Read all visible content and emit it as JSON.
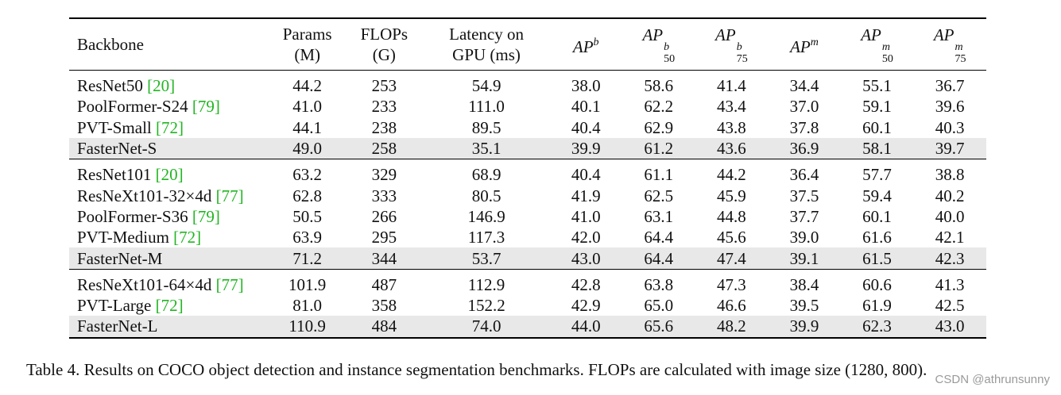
{
  "header": {
    "backbone": "Backbone",
    "params": [
      "Params",
      "(M)"
    ],
    "flops": [
      "FLOPs",
      "(G)"
    ],
    "latency": [
      "Latency on",
      "GPU (ms)"
    ],
    "metrics": [
      {
        "base": "AP",
        "sup": "b",
        "sub": ""
      },
      {
        "base": "AP",
        "sup": "b",
        "sub": "50"
      },
      {
        "base": "AP",
        "sup": "b",
        "sub": "75"
      },
      {
        "base": "AP",
        "sup": "m",
        "sub": ""
      },
      {
        "base": "AP",
        "sup": "m",
        "sub": "50"
      },
      {
        "base": "AP",
        "sup": "m",
        "sub": "75"
      }
    ]
  },
  "groups": [
    {
      "rows": [
        {
          "name": "ResNet50",
          "ref": "[20]",
          "values": [
            "44.2",
            "253",
            "54.9",
            "38.0",
            "58.6",
            "41.4",
            "34.4",
            "55.1",
            "36.7"
          ],
          "highlight": false
        },
        {
          "name": "PoolFormer-S24",
          "ref": "[79]",
          "values": [
            "41.0",
            "233",
            "111.0",
            "40.1",
            "62.2",
            "43.4",
            "37.0",
            "59.1",
            "39.6"
          ],
          "highlight": false
        },
        {
          "name": "PVT-Small",
          "ref": "[72]",
          "values": [
            "44.1",
            "238",
            "89.5",
            "40.4",
            "62.9",
            "43.8",
            "37.8",
            "60.1",
            "40.3"
          ],
          "highlight": false
        },
        {
          "name": "FasterNet-S",
          "ref": "",
          "values": [
            "49.0",
            "258",
            "35.1",
            "39.9",
            "61.2",
            "43.6",
            "36.9",
            "58.1",
            "39.7"
          ],
          "highlight": true
        }
      ]
    },
    {
      "rows": [
        {
          "name": "ResNet101",
          "ref": "[20]",
          "values": [
            "63.2",
            "329",
            "68.9",
            "40.4",
            "61.1",
            "44.2",
            "36.4",
            "57.7",
            "38.8"
          ],
          "highlight": false
        },
        {
          "name": "ResNeXt101-32×4d",
          "ref": "[77]",
          "values": [
            "62.8",
            "333",
            "80.5",
            "41.9",
            "62.5",
            "45.9",
            "37.5",
            "59.4",
            "40.2"
          ],
          "highlight": false
        },
        {
          "name": "PoolFormer-S36",
          "ref": "[79]",
          "values": [
            "50.5",
            "266",
            "146.9",
            "41.0",
            "63.1",
            "44.8",
            "37.7",
            "60.1",
            "40.0"
          ],
          "highlight": false
        },
        {
          "name": "PVT-Medium",
          "ref": "[72]",
          "values": [
            "63.9",
            "295",
            "117.3",
            "42.0",
            "64.4",
            "45.6",
            "39.0",
            "61.6",
            "42.1"
          ],
          "highlight": false
        },
        {
          "name": "FasterNet-M",
          "ref": "",
          "values": [
            "71.2",
            "344",
            "53.7",
            "43.0",
            "64.4",
            "47.4",
            "39.1",
            "61.5",
            "42.3"
          ],
          "highlight": true
        }
      ]
    },
    {
      "rows": [
        {
          "name": "ResNeXt101-64×4d",
          "ref": "[77]",
          "values": [
            "101.9",
            "487",
            "112.9",
            "42.8",
            "63.8",
            "47.3",
            "38.4",
            "60.6",
            "41.3"
          ],
          "highlight": false
        },
        {
          "name": "PVT-Large",
          "ref": "[72]",
          "values": [
            "81.0",
            "358",
            "152.2",
            "42.9",
            "65.0",
            "46.6",
            "39.5",
            "61.9",
            "42.5"
          ],
          "highlight": false
        },
        {
          "name": "FasterNet-L",
          "ref": "",
          "values": [
            "110.9",
            "484",
            "74.0",
            "44.0",
            "65.6",
            "48.2",
            "39.9",
            "62.3",
            "43.0"
          ],
          "highlight": true
        }
      ]
    }
  ],
  "caption": "Table 4. Results on COCO object detection and instance segmentation benchmarks. FLOPs are calculated with image size (1280, 800).",
  "watermark": "CSDN @athrunsunny",
  "colors": {
    "highlight_row": "#e8e8e8",
    "citation": "#22b522"
  }
}
